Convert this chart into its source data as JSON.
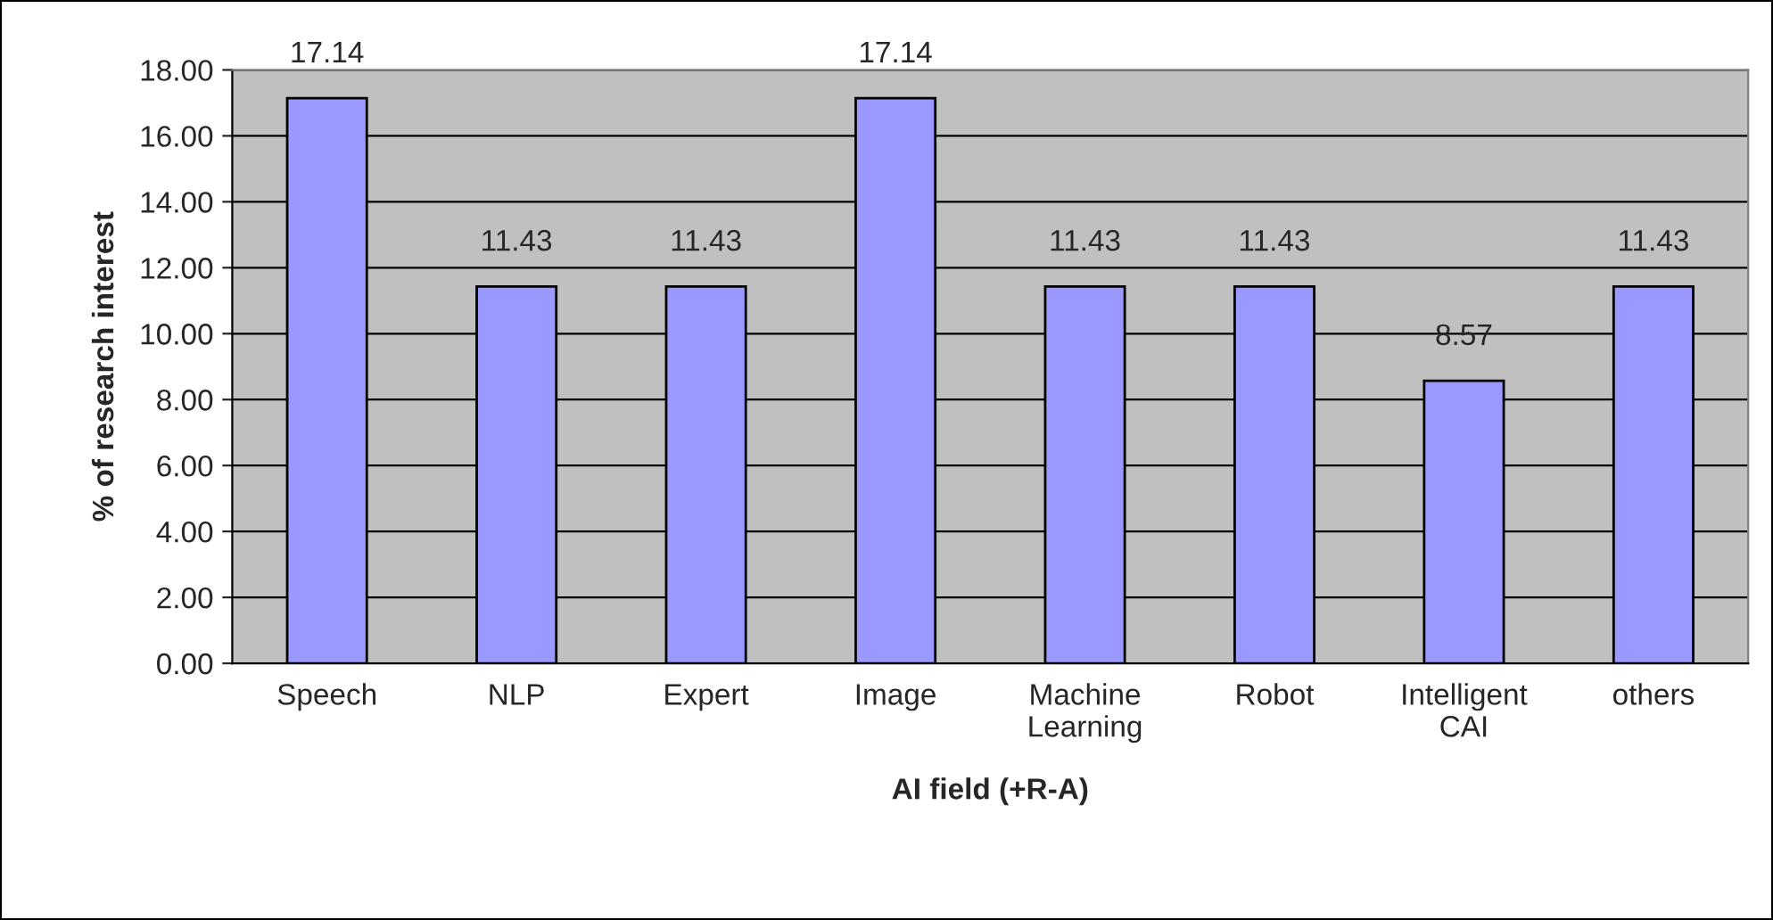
{
  "chart_data": {
    "type": "bar",
    "xlabel": "AI field (+R-A)",
    "ylabel": "% of research interest",
    "categories": [
      "Speech",
      "NLP",
      "Expert",
      "Image",
      "Machine\nLearning",
      "Robot",
      "Intelligent\nCAI",
      "others"
    ],
    "values": [
      17.14,
      11.43,
      11.43,
      17.14,
      11.43,
      11.43,
      8.57,
      11.43
    ],
    "color": "#9999ff",
    "ylim": [
      0,
      18
    ],
    "yticks": [
      {
        "value": 0,
        "label": "0.00"
      },
      {
        "value": 2,
        "label": "2.00"
      },
      {
        "value": 4,
        "label": "4.00"
      },
      {
        "value": 6,
        "label": "6.00"
      },
      {
        "value": 8,
        "label": "8.00"
      },
      {
        "value": 10,
        "label": "10.00"
      },
      {
        "value": 12,
        "label": "12.00"
      },
      {
        "value": 14,
        "label": "14.00"
      },
      {
        "value": 16,
        "label": "16.00"
      },
      {
        "value": 18,
        "label": "18.00"
      }
    ],
    "grid": "y",
    "data_labels": true
  }
}
